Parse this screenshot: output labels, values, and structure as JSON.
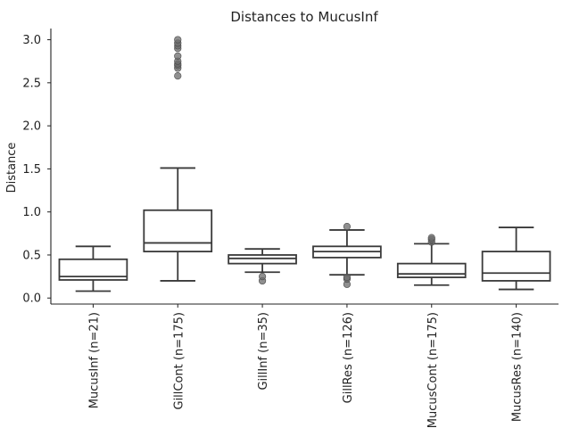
{
  "chart_data": {
    "type": "box",
    "title": "Distances to MucusInf",
    "xlabel": "",
    "ylabel": "Distance",
    "ylim": [
      -0.07,
      3.13
    ],
    "yticks": [
      "0.0",
      "0.5",
      "1.0",
      "1.5",
      "2.0",
      "2.5",
      "3.0"
    ],
    "ytick_values": [
      0,
      0.5,
      1.0,
      1.5,
      2.0,
      2.5,
      3.0
    ],
    "grid": false,
    "categories": [
      "MucusInf (n=21)",
      "GillCont (n=175)",
      "GillInf (n=35)",
      "GillRes (n=126)",
      "MucusCont (n=175)",
      "MucusRes (n=140)"
    ],
    "boxes": [
      {
        "q1": 0.21,
        "median": 0.25,
        "q3": 0.45,
        "whislo": 0.08,
        "whishi": 0.6,
        "outliers": []
      },
      {
        "q1": 0.54,
        "median": 0.64,
        "q3": 1.02,
        "whislo": 0.2,
        "whishi": 1.51,
        "outliers": [
          2.58,
          2.67,
          2.7,
          2.72,
          2.75,
          2.81,
          2.9,
          2.93,
          2.96,
          3.0
        ]
      },
      {
        "q1": 0.4,
        "median": 0.46,
        "q3": 0.5,
        "whislo": 0.3,
        "whishi": 0.57,
        "outliers": [
          0.2,
          0.25
        ]
      },
      {
        "q1": 0.47,
        "median": 0.54,
        "q3": 0.6,
        "whislo": 0.27,
        "whishi": 0.79,
        "outliers": [
          0.16,
          0.22,
          0.24,
          0.83
        ]
      },
      {
        "q1": 0.24,
        "median": 0.28,
        "q3": 0.4,
        "whislo": 0.15,
        "whishi": 0.63,
        "outliers": [
          0.65,
          0.68,
          0.7
        ]
      },
      {
        "q1": 0.2,
        "median": 0.29,
        "q3": 0.54,
        "whislo": 0.1,
        "whishi": 0.82,
        "outliers": []
      }
    ],
    "colors": {
      "box_edge": "#3a3a3a",
      "outlier": "#6b6b6b",
      "axis": "#222222"
    }
  }
}
